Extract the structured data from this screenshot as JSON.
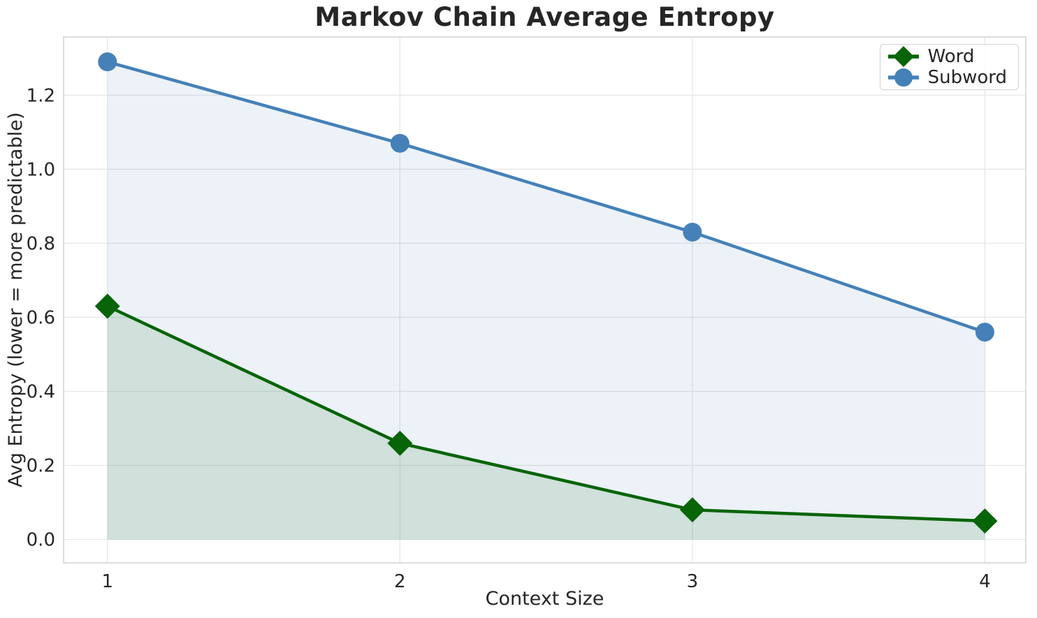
{
  "chart_data": {
    "type": "line",
    "title": "Markov Chain Average Entropy",
    "xlabel": "Context Size",
    "ylabel": "Avg Entropy (lower = more predictable)",
    "x": [
      1,
      2,
      3,
      4
    ],
    "series": [
      {
        "name": "Word",
        "values": [
          0.63,
          0.26,
          0.08,
          0.05
        ],
        "color": "#076407",
        "marker": "diamond",
        "area_fill": true,
        "fill_opacity": 0.12
      },
      {
        "name": "Subword",
        "values": [
          1.29,
          1.07,
          0.83,
          0.56
        ],
        "color": "#4581b8",
        "marker": "circle",
        "area_fill": true,
        "fill_opacity": 0.1
      }
    ],
    "xticks": [
      1,
      2,
      3,
      4
    ],
    "xtick_labels": [
      "1",
      "2",
      "3",
      "4"
    ],
    "yticks": [
      0.0,
      0.2,
      0.4,
      0.6,
      0.8,
      1.0,
      1.2
    ],
    "ytick_labels": [
      "0.0",
      "0.2",
      "0.4",
      "0.6",
      "0.8",
      "1.0",
      "1.2"
    ],
    "xlim": [
      0.85,
      4.14
    ],
    "ylim": [
      -0.063,
      1.357
    ],
    "grid": true,
    "gridline_color": "#e7e7e7",
    "spine_color": "#d5d5d5",
    "text_color": "#262626",
    "legend": {
      "position": "upper right",
      "entries": [
        "Word",
        "Subword"
      ]
    }
  }
}
